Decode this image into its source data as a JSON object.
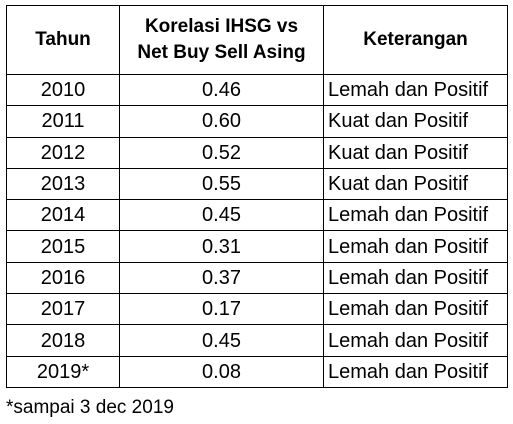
{
  "table": {
    "headers": {
      "year": "Tahun",
      "correlation_line1": "Korelasi IHSG vs",
      "correlation_line2": "Net Buy Sell Asing",
      "description": "Keterangan"
    },
    "rows": [
      {
        "year": "2010",
        "correlation": "0.46",
        "description": "Lemah dan Positif"
      },
      {
        "year": "2011",
        "correlation": "0.60",
        "description": "Kuat dan Positif"
      },
      {
        "year": "2012",
        "correlation": "0.52",
        "description": "Kuat dan Positif"
      },
      {
        "year": "2013",
        "correlation": "0.55",
        "description": "Kuat dan Positif"
      },
      {
        "year": "2014",
        "correlation": "0.45",
        "description": "Lemah dan Positif"
      },
      {
        "year": "2015",
        "correlation": "0.31",
        "description": "Lemah dan Positif"
      },
      {
        "year": "2016",
        "correlation": "0.37",
        "description": "Lemah dan Positif"
      },
      {
        "year": "2017",
        "correlation": "0.17",
        "description": "Lemah dan Positif"
      },
      {
        "year": "2018",
        "correlation": "0.45",
        "description": "Lemah dan Positif"
      },
      {
        "year": "2019*",
        "correlation": "0.08",
        "description": "Lemah dan Positif"
      }
    ]
  },
  "footnote": "*sampai 3 dec 2019"
}
